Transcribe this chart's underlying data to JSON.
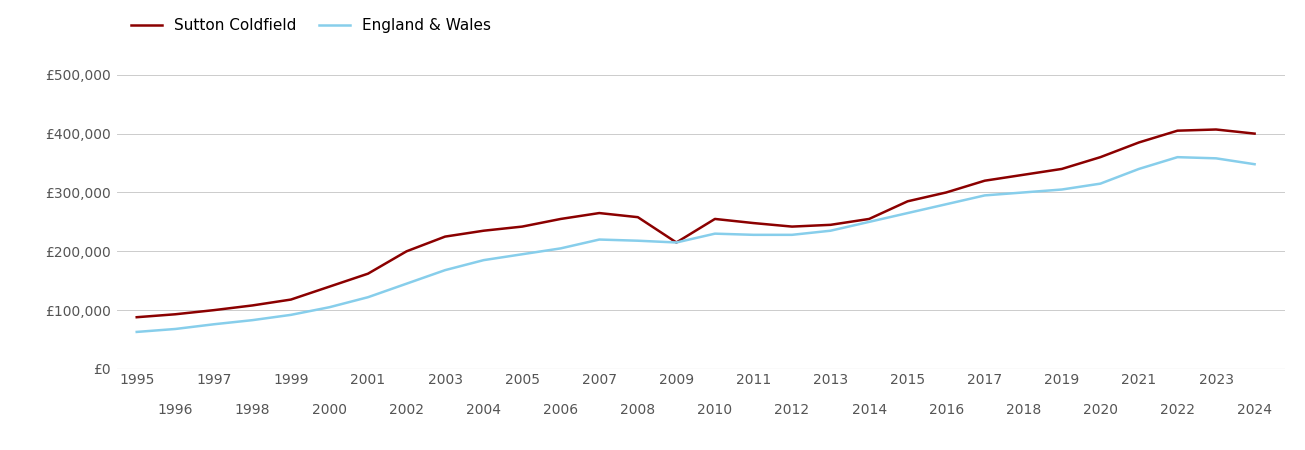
{
  "sutton_coldfield": {
    "years": [
      1995,
      1996,
      1997,
      1998,
      1999,
      2000,
      2001,
      2002,
      2003,
      2004,
      2005,
      2006,
      2007,
      2008,
      2009,
      2010,
      2011,
      2012,
      2013,
      2014,
      2015,
      2016,
      2017,
      2018,
      2019,
      2020,
      2021,
      2022,
      2023,
      2024
    ],
    "values": [
      88000,
      93000,
      100000,
      108000,
      118000,
      140000,
      162000,
      200000,
      225000,
      235000,
      242000,
      255000,
      265000,
      258000,
      215000,
      255000,
      248000,
      242000,
      245000,
      255000,
      285000,
      300000,
      320000,
      330000,
      340000,
      360000,
      385000,
      405000,
      407000,
      400000
    ]
  },
  "england_wales": {
    "years": [
      1995,
      1996,
      1997,
      1998,
      1999,
      2000,
      2001,
      2002,
      2003,
      2004,
      2005,
      2006,
      2007,
      2008,
      2009,
      2010,
      2011,
      2012,
      2013,
      2014,
      2015,
      2016,
      2017,
      2018,
      2019,
      2020,
      2021,
      2022,
      2023,
      2024
    ],
    "values": [
      63000,
      68000,
      76000,
      83000,
      92000,
      105000,
      122000,
      145000,
      168000,
      185000,
      195000,
      205000,
      220000,
      218000,
      215000,
      230000,
      228000,
      228000,
      235000,
      250000,
      265000,
      280000,
      295000,
      300000,
      305000,
      315000,
      340000,
      360000,
      358000,
      348000
    ]
  },
  "sutton_color": "#8B0000",
  "england_color": "#87CEEB",
  "background_color": "#ffffff",
  "grid_color": "#cccccc",
  "ylim": [
    0,
    520000
  ],
  "yticks": [
    0,
    100000,
    200000,
    300000,
    400000,
    500000
  ],
  "xlim": [
    1994.5,
    2024.8
  ],
  "xticks_odd": [
    1995,
    1997,
    1999,
    2001,
    2003,
    2005,
    2007,
    2009,
    2011,
    2013,
    2015,
    2017,
    2019,
    2021,
    2023
  ],
  "xticks_even": [
    1996,
    1998,
    2000,
    2002,
    2004,
    2006,
    2008,
    2010,
    2012,
    2014,
    2016,
    2018,
    2020,
    2022,
    2024
  ],
  "legend_labels": [
    "Sutton Coldfield",
    "England & Wales"
  ],
  "line_width": 1.8,
  "tick_label_color": "#555555",
  "tick_label_fontsize": 10
}
